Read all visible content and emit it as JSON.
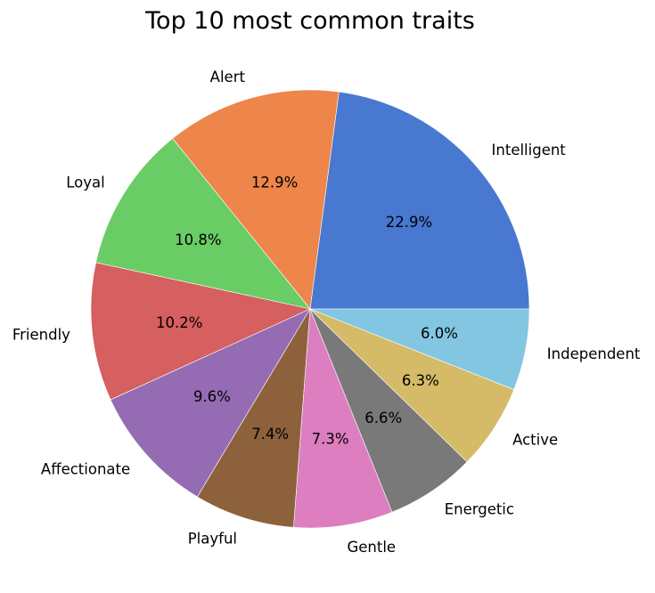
{
  "chart_data": {
    "type": "pie",
    "title": "Top 10 most common traits",
    "categories": [
      "Intelligent",
      "Alert",
      "Loyal",
      "Friendly",
      "Affectionate",
      "Playful",
      "Gentle",
      "Energetic",
      "Active",
      "Independent"
    ],
    "values": [
      22.9,
      12.9,
      10.8,
      10.2,
      9.6,
      7.4,
      7.3,
      6.6,
      6.3,
      6.0
    ],
    "percent_labels": [
      "22.9%",
      "12.9%",
      "10.8%",
      "10.2%",
      "9.6%",
      "7.4%",
      "7.3%",
      "6.6%",
      "6.3%",
      "6.0%"
    ],
    "colors": [
      "#4878d0",
      "#ee854a",
      "#6acc64",
      "#d65f5f",
      "#956cb4",
      "#8c613c",
      "#dc7ec0",
      "#797979",
      "#d5bb67",
      "#82c6e2"
    ],
    "start_angle": "3 o'clock",
    "direction": "counterclockwise",
    "legend": "none"
  }
}
